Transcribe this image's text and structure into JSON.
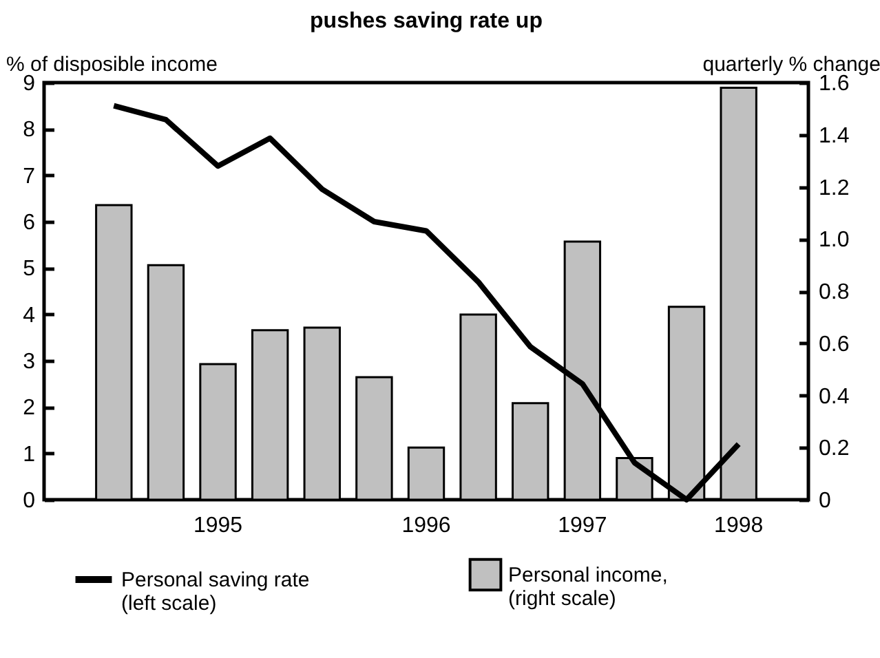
{
  "chart_data": {
    "type": "bar",
    "title": "pushes saving rate up",
    "ylabel": "% of disposible income",
    "y2label": "quarterly % change",
    "categories": [
      null,
      null,
      "1995",
      null,
      null,
      null,
      "1996",
      null,
      null,
      "1997",
      null,
      null,
      "1998"
    ],
    "series": [
      {
        "name": "Personal saving rate (left scale)",
        "type": "line",
        "color": "#000000",
        "values": [
          8.5,
          8.2,
          7.2,
          7.8,
          6.7,
          6.0,
          5.8,
          4.7,
          3.3,
          2.5,
          0.8,
          0.0,
          1.2
        ]
      },
      {
        "name": "Personal income, (right scale)",
        "axis": "y2",
        "color": "#c0c0c0",
        "values": [
          1.13,
          0.9,
          0.52,
          0.65,
          0.66,
          0.47,
          0.2,
          0.71,
          0.37,
          0.99,
          0.16,
          0.74,
          1.58
        ]
      }
    ],
    "ylim": [
      0,
      9
    ],
    "yticks": [
      0,
      1,
      2,
      3,
      4,
      5,
      6,
      7,
      8,
      9
    ],
    "y2lim": [
      0,
      1.6
    ],
    "y2ticks": [
      0,
      0.2,
      0.4,
      0.6,
      0.8,
      {
        "value": 1,
        "label": "1.0"
      },
      1.2,
      1.4,
      1.6
    ],
    "grid": false,
    "legend": "bottom"
  }
}
